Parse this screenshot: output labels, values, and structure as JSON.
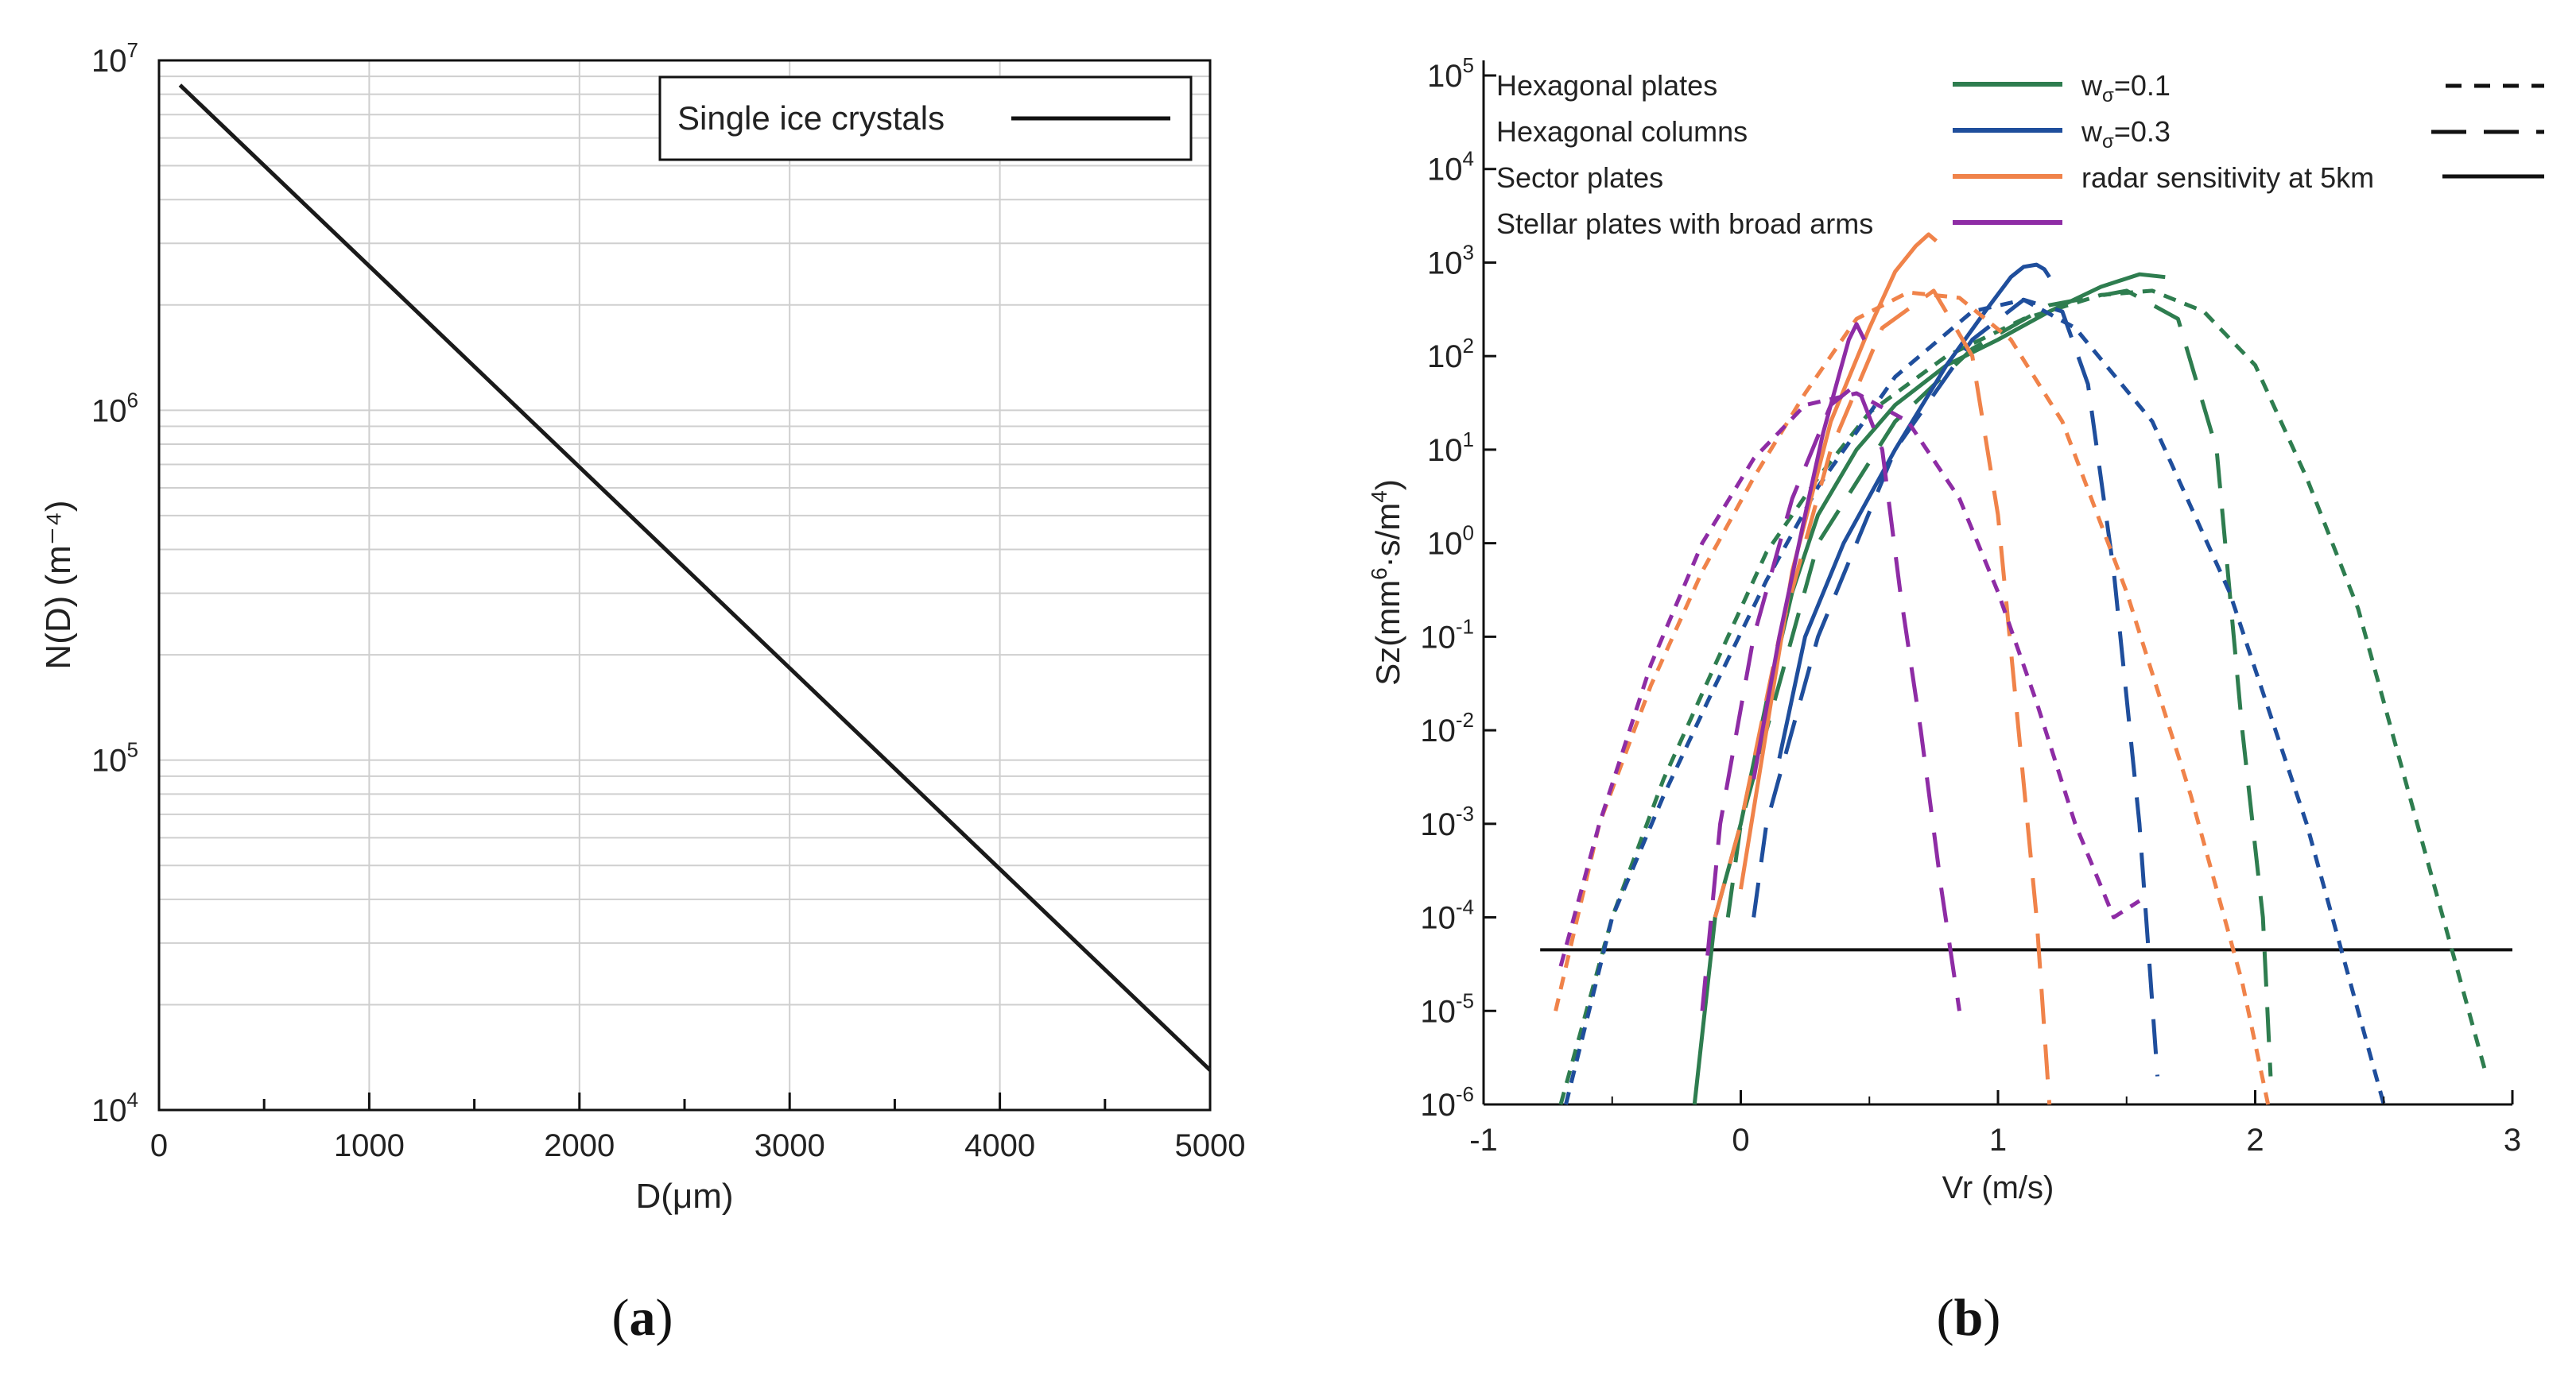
{
  "chart_data": [
    {
      "id": "a",
      "type": "line",
      "panel_label": "a",
      "xlabel": "D(μm)",
      "ylabel": "N(D) (m⁻⁴)",
      "xscale": "linear",
      "yscale": "log",
      "xlim": [
        0,
        5000
      ],
      "ylim": [
        10000,
        10000000
      ],
      "xticks": [
        0,
        1000,
        2000,
        3000,
        4000,
        5000
      ],
      "xtick_labels": [
        "0",
        "1000",
        "2000",
        "3000",
        "4000",
        "5000"
      ],
      "yticks": [
        10000,
        100000,
        1000000,
        10000000
      ],
      "ytick_labels": [
        {
          "base": "10",
          "exp": "4"
        },
        {
          "base": "10",
          "exp": "5"
        },
        {
          "base": "10",
          "exp": "6"
        },
        {
          "base": "10",
          "exp": "7"
        }
      ],
      "grid": true,
      "legend_position": "top-right",
      "series": [
        {
          "name": "Single ice crystals",
          "style": "solid",
          "color": "#1a1a1a",
          "x": [
            100,
            5000
          ],
          "y": [
            8500000,
            13000
          ]
        }
      ]
    },
    {
      "id": "b",
      "type": "line",
      "panel_label": "b",
      "xlabel": "Vr (m/s)",
      "ylabel": {
        "base": "Sz(mm",
        "exp1": "6",
        "mid": "·s/m",
        "exp2": "4",
        "end": ")"
      },
      "xscale": "linear",
      "yscale": "log",
      "xlim": [
        -1,
        3
      ],
      "ylim": [
        1e-06,
        100000.0
      ],
      "xticks": [
        -1,
        0,
        1,
        2,
        3
      ],
      "xtick_labels": [
        "-1",
        "0",
        "1",
        "2",
        "3"
      ],
      "ytick_labels": [
        {
          "base": "10",
          "exp": "-6"
        },
        {
          "base": "10",
          "exp": "-5"
        },
        {
          "base": "10",
          "exp": "-4"
        },
        {
          "base": "10",
          "exp": "-3"
        },
        {
          "base": "10",
          "exp": "-2"
        },
        {
          "base": "10",
          "exp": "-1"
        },
        {
          "base": "10",
          "exp": "0"
        },
        {
          "base": "10",
          "exp": "1"
        },
        {
          "base": "10",
          "exp": "2"
        },
        {
          "base": "10",
          "exp": "3"
        },
        {
          "base": "10",
          "exp": "4"
        },
        {
          "base": "10",
          "exp": "5"
        }
      ],
      "grid": false,
      "legend": {
        "types": [
          {
            "name": "Hexagonal plates",
            "color": "#2e7d4f"
          },
          {
            "name": "Hexagonal columns",
            "color": "#1f4e9c"
          },
          {
            "name": "Sector plates",
            "color": "#f0834a"
          },
          {
            "name": "Stellar plates with broad arms",
            "color": "#8e2ca5"
          }
        ],
        "spread": [
          {
            "label_main": "w",
            "label_sub": "σ",
            "label_rest": "=0.1",
            "dash": "short"
          },
          {
            "label_main": "w",
            "label_sub": "σ",
            "label_rest": "=0.3",
            "dash": "long"
          }
        ],
        "reference": {
          "label": "radar sensitivity at 5km",
          "style": "solid"
        }
      },
      "reference_line": {
        "name": "radar sensitivity at 5km",
        "y": 4.5e-05,
        "x": [
          -0.78,
          3.0
        ]
      },
      "series": [
        {
          "name": "Hexagonal plates (solid)",
          "color": "#2e7d4f",
          "dash": "solid",
          "x": [
            -0.18,
            -0.1,
            0.0,
            0.1,
            0.2,
            0.3,
            0.45,
            0.6,
            0.8,
            1.0,
            1.2,
            1.4,
            1.55,
            1.65
          ],
          "y": [
            1e-06,
            0.0001,
            0.001,
            0.02,
            0.3,
            2,
            10,
            30,
            80,
            150,
            300,
            550,
            750,
            700
          ]
        },
        {
          "name": "Hexagonal plates w=0.1",
          "color": "#2e7d4f",
          "dash": "short",
          "x": [
            -0.7,
            -0.5,
            -0.3,
            -0.1,
            0.1,
            0.3,
            0.5,
            0.8,
            1.1,
            1.4,
            1.6,
            1.8,
            2.0,
            2.2,
            2.4,
            2.6,
            2.8,
            2.9
          ],
          "y": [
            1e-06,
            0.0001,
            0.003,
            0.05,
            0.8,
            5,
            25,
            100,
            250,
            450,
            500,
            300,
            80,
            5,
            0.2,
            0.002,
            2e-05,
            2e-06
          ]
        },
        {
          "name": "Hexagonal plates w=0.3",
          "color": "#2e7d4f",
          "dash": "long",
          "x": [
            -0.05,
            0.0,
            0.1,
            0.3,
            0.6,
            0.9,
            1.2,
            1.5,
            1.7,
            1.85,
            1.95,
            2.03,
            2.06
          ],
          "y": [
            0.0001,
            0.001,
            0.01,
            1,
            20,
            120,
            350,
            500,
            250,
            10,
            0.01,
            0.0001,
            2e-06
          ]
        },
        {
          "name": "Hexagonal columns (solid)",
          "color": "#1f4e9c",
          "dash": "solid",
          "x": [
            0.15,
            0.25,
            0.4,
            0.6,
            0.8,
            0.95,
            1.05,
            1.1,
            1.15,
            1.18,
            1.2
          ],
          "y": [
            0.005,
            0.1,
            1,
            10,
            80,
            300,
            700,
            900,
            950,
            850,
            700
          ]
        },
        {
          "name": "Hexagonal columns w=0.1",
          "color": "#1f4e9c",
          "dash": "short",
          "x": [
            -0.68,
            -0.5,
            -0.3,
            -0.1,
            0.1,
            0.3,
            0.6,
            0.9,
            1.1,
            1.3,
            1.6,
            1.9,
            2.2,
            2.4,
            2.5
          ],
          "y": [
            1e-06,
            0.0001,
            0.002,
            0.03,
            0.4,
            4,
            60,
            300,
            400,
            200,
            20,
            0.3,
            0.001,
            1e-05,
            1e-06
          ]
        },
        {
          "name": "Hexagonal columns w=0.3",
          "color": "#1f4e9c",
          "dash": "long",
          "x": [
            0.05,
            0.1,
            0.3,
            0.6,
            0.9,
            1.1,
            1.25,
            1.35,
            1.45,
            1.55,
            1.62
          ],
          "y": [
            0.0001,
            0.001,
            0.1,
            10,
            150,
            400,
            300,
            50,
            0.5,
            0.001,
            2e-06
          ]
        },
        {
          "name": "Sector plates (solid)",
          "color": "#f0834a",
          "dash": "solid",
          "x": [
            0.0,
            0.1,
            0.2,
            0.35,
            0.5,
            0.6,
            0.68,
            0.73,
            0.76
          ],
          "y": [
            0.0002,
            0.01,
            0.5,
            20,
            200,
            800,
            1500,
            2000,
            1700
          ]
        },
        {
          "name": "Sector plates w=0.1",
          "color": "#f0834a",
          "dash": "short",
          "x": [
            -0.72,
            -0.55,
            -0.35,
            -0.15,
            0.05,
            0.25,
            0.45,
            0.65,
            0.85,
            1.05,
            1.25,
            1.5,
            1.75,
            1.95,
            2.05
          ],
          "y": [
            1e-05,
            0.001,
            0.03,
            0.5,
            5,
            40,
            250,
            480,
            420,
            150,
            20,
            0.3,
            0.002,
            2e-05,
            1e-06
          ]
        },
        {
          "name": "Sector plates w=0.3",
          "color": "#f0834a",
          "dash": "long",
          "x": [
            -0.1,
            0.0,
            0.15,
            0.35,
            0.55,
            0.75,
            0.9,
            1.0,
            1.08,
            1.15,
            1.2
          ],
          "y": [
            0.0001,
            0.001,
            0.1,
            10,
            200,
            500,
            100,
            2,
            0.01,
            0.0001,
            1e-06
          ]
        },
        {
          "name": "Stellar plates with broad arms (solid)",
          "color": "#8e2ca5",
          "dash": "solid",
          "x": [
            0.05,
            0.15,
            0.25,
            0.32,
            0.38,
            0.42,
            0.45,
            0.48
          ],
          "y": [
            0.003,
            0.1,
            2,
            15,
            60,
            150,
            220,
            150
          ]
        },
        {
          "name": "Stellar plates with broad arms w=0.1",
          "color": "#8e2ca5",
          "dash": "short",
          "x": [
            -0.7,
            -0.55,
            -0.35,
            -0.15,
            0.05,
            0.25,
            0.45,
            0.65,
            0.85,
            1.0,
            1.15,
            1.3,
            1.45,
            1.55
          ],
          "y": [
            3e-05,
            0.001,
            0.05,
            1,
            8,
            30,
            40,
            20,
            3,
            0.3,
            0.02,
            0.001,
            0.0001,
            0.00015
          ]
        },
        {
          "name": "Stellar plates with broad arms w=0.3",
          "color": "#8e2ca5",
          "dash": "long",
          "x": [
            -0.15,
            -0.08,
            0.05,
            0.2,
            0.35,
            0.45,
            0.55,
            0.62,
            0.7,
            0.78,
            0.85
          ],
          "y": [
            1e-05,
            0.001,
            0.1,
            3,
            30,
            50,
            10,
            0.3,
            0.01,
            0.0002,
            1e-05
          ]
        }
      ]
    }
  ]
}
